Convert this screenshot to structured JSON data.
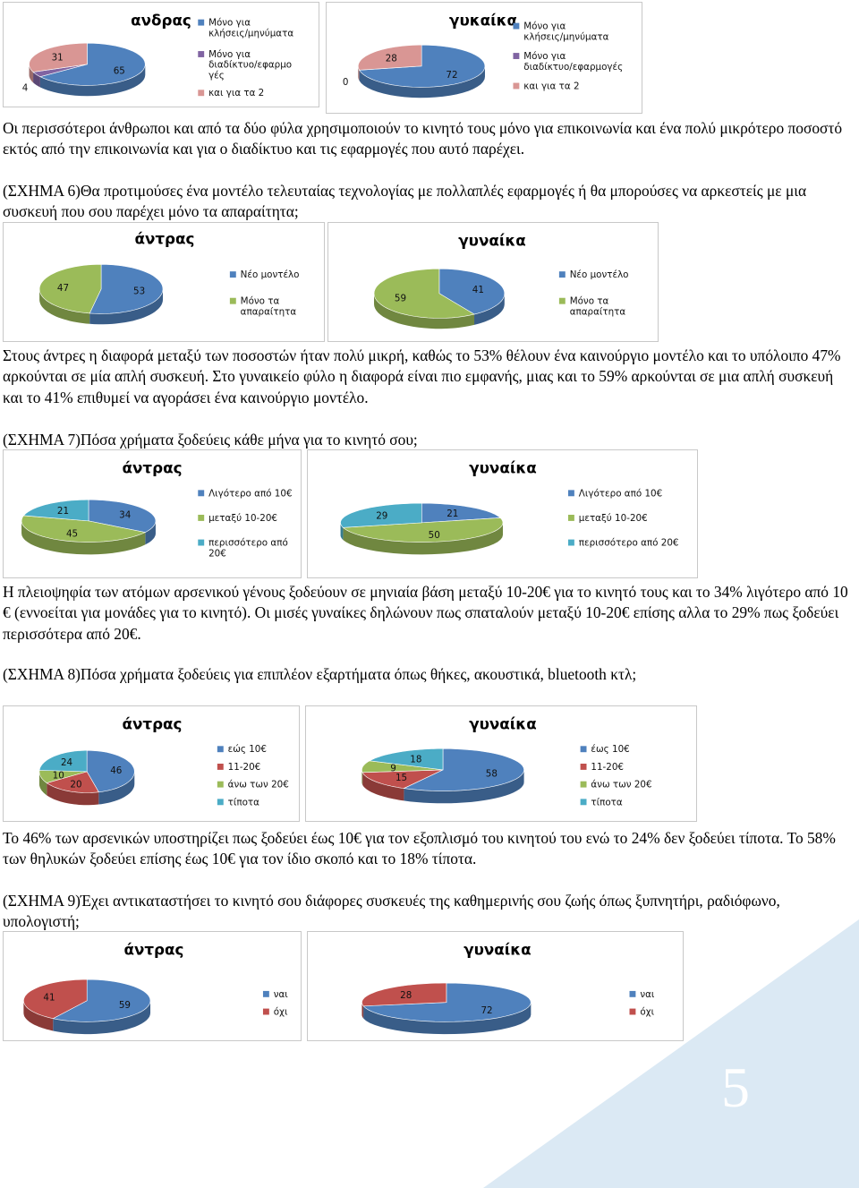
{
  "page_number": "5",
  "paragraphs": [
    "Οι περισσότεροι άνθρωποι και από τα δύο φύλα χρησιμοποιούν το κινητό τους μόνο για επικοινωνία και ένα πολύ μικρότερο ποσοστό εκτός από την επικοινωνία και για ο διαδίκτυο και τις εφαρμογές που αυτό παρέχει.",
    "(ΣΧΗΜΑ 6)Θα προτιμούσες ένα μοντέλο τελευταίας τεχνολογίας με πολλαπλές εφαρμογές ή θα μπορούσες να αρκεστείς με μια συσκευή που σου παρέχει μόνο τα απαραίτητα;",
    "Στους άντρες η διαφορά μεταξύ των ποσοστών ήταν πολύ μικρή, καθώς το 53% θέλουν ένα καινούργιο μοντέλο και το υπόλοιπο 47% αρκούνται σε μία απλή συσκευή. Στο γυναικείο φύλο η διαφορά είναι πιο εμφανής, μιας και το 59% αρκούνται σε μια απλή συσκευή και το 41% επιθυμεί να αγοράσει ένα καινούργιο μοντέλο.",
    "(ΣΧΗΜΑ 7)Πόσα χρήματα ξοδεύεις κάθε μήνα για το κινητό σου;",
    "Η πλειοψηφία των ατόμων αρσενικού γένους ξοδεύουν σε μηνιαία βάση μεταξύ 10-20€ για το κινητό τους και το 34% λιγότερο από 10 € (εννοείται για μονάδες για το κινητό). Οι μισές γυναίκες δηλώνουν πως σπαταλούν μεταξύ 10-20€ επίσης αλλα το 29% πως ξοδεύει περισσότερα από 20€.",
    "(ΣΧΗΜΑ 8)Πόσα χρήματα ξοδεύεις για επιπλέον εξαρτήματα  όπως θήκες, ακουστικά, bluetooth κτλ;",
    "Το 46% των αρσενικών υποστηρίζει πως ξοδεύει έως 10€ για τον εξοπλισμό του κινητού του ενώ το 24% δεν ξοδεύει τίποτα. Το 58% των θηλυκών ξοδεύει επίσης έως 10€ για τον ίδιο σκοπό και το 18% τίποτα.",
    "(ΣΧΗΜΑ 9)Έχει αντικαταστήσει το κινητό σου διάφορες συσκευές της καθημερινής σου ζωής όπως ξυπνητήρι, ραδιόφωνο, υπολογιστή;"
  ],
  "colors": {
    "blue": "#4f81bd",
    "red": "#c0504d",
    "green": "#9bbb59",
    "purple": "#8064a2",
    "cyan": "#4bacc6",
    "pink": "#d99694",
    "deco": "#dbe9f4"
  },
  "chart_data": [
    {
      "type": "pie",
      "title": "ανδρας",
      "values": [
        65,
        4,
        31
      ],
      "labels": [
        "Μόνο για κλήσεις/μηνύματα",
        "Μόνο για διαδίκτυο/εφαρμο γές",
        "και για τα 2"
      ],
      "colors": [
        "#4f81bd",
        "#8064a2",
        "#d99694"
      ]
    },
    {
      "type": "pie",
      "title": "γυκαίκα",
      "values": [
        72,
        0,
        28
      ],
      "labels": [
        "Μόνο για κλήσεις/μηνύματα",
        "Μόνο για διαδίκτυο/εφαρμογές",
        "και για τα 2"
      ],
      "colors": [
        "#4f81bd",
        "#8064a2",
        "#d99694"
      ]
    },
    {
      "type": "pie",
      "title": "άντρας",
      "values": [
        53,
        47
      ],
      "labels": [
        "Νέο μοντέλο",
        "Μόνο τα απαραίτητα"
      ],
      "colors": [
        "#4f81bd",
        "#9bbb59"
      ]
    },
    {
      "type": "pie",
      "title": "γυναίκα",
      "values": [
        41,
        59
      ],
      "labels": [
        "Νέο μοντέλο",
        "Μόνο τα απαραίτητα"
      ],
      "colors": [
        "#4f81bd",
        "#9bbb59"
      ]
    },
    {
      "type": "pie",
      "title": "άντρας",
      "values": [
        34,
        45,
        21
      ],
      "labels": [
        "Λιγότερο από 10€",
        "μεταξύ 10-20€",
        "περισσότερο από 20€"
      ],
      "colors": [
        "#4f81bd",
        "#9bbb59",
        "#4bacc6"
      ]
    },
    {
      "type": "pie",
      "title": "γυναίκα",
      "values": [
        21,
        50,
        29
      ],
      "labels": [
        "Λιγότερο από 10€",
        "μεταξύ 10-20€",
        "περισσότερο από 20€"
      ],
      "colors": [
        "#4f81bd",
        "#9bbb59",
        "#4bacc6"
      ]
    },
    {
      "type": "pie",
      "title": "άντρας",
      "values": [
        46,
        20,
        10,
        24
      ],
      "labels": [
        "εώς 10€",
        "11-20€",
        "άνω των 20€",
        "τίποτα"
      ],
      "colors": [
        "#4f81bd",
        "#c0504d",
        "#9bbb59",
        "#4bacc6"
      ]
    },
    {
      "type": "pie",
      "title": "γυναίκα",
      "values": [
        58,
        15,
        9,
        18
      ],
      "labels": [
        "έως 10€",
        "11-20€",
        "άνω των 20€",
        "τίποτα"
      ],
      "colors": [
        "#4f81bd",
        "#c0504d",
        "#9bbb59",
        "#4bacc6"
      ]
    },
    {
      "type": "pie",
      "title": "άντρας",
      "values": [
        59,
        41
      ],
      "labels": [
        "ναι",
        "όχι"
      ],
      "colors": [
        "#4f81bd",
        "#c0504d"
      ]
    },
    {
      "type": "pie",
      "title": "γυναίκα",
      "values": [
        72,
        28
      ],
      "labels": [
        "ναι",
        "όχι"
      ],
      "colors": [
        "#4f81bd",
        "#c0504d"
      ]
    }
  ]
}
